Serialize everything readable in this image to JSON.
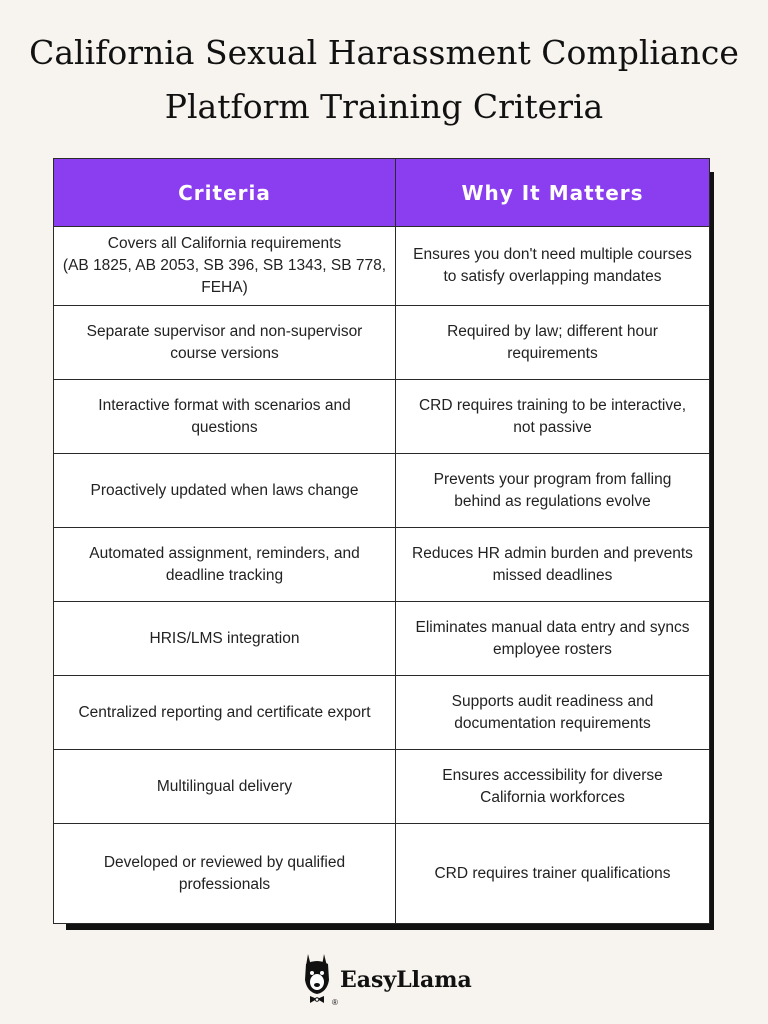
{
  "title": {
    "line1": "California Sexual Harassment Compliance",
    "line2": "Platform Training Criteria"
  },
  "table": {
    "headers": [
      "Criteria",
      "Why It Matters"
    ],
    "rows": [
      {
        "criteria": [
          "Covers all California requirements",
          "(AB 1825, AB 2053, SB 396, SB 1343, SB 778,",
          "FEHA)"
        ],
        "why": [
          "Ensures you don't need multiple courses",
          "to satisfy overlapping mandates"
        ]
      },
      {
        "criteria": [
          "Separate supervisor and non-supervisor",
          "course versions"
        ],
        "why": [
          "Required by law; different hour",
          "requirements"
        ]
      },
      {
        "criteria": [
          "Interactive format with scenarios and",
          "questions"
        ],
        "why": [
          "CRD requires training to be interactive,",
          "not passive"
        ]
      },
      {
        "criteria": [
          "Proactively updated when laws change"
        ],
        "why": [
          "Prevents your program from falling",
          "behind as regulations evolve"
        ]
      },
      {
        "criteria": [
          "Automated assignment, reminders, and",
          "deadline tracking"
        ],
        "why": [
          "Reduces HR admin burden and prevents",
          "missed deadlines"
        ]
      },
      {
        "criteria": [
          "HRIS/LMS integration"
        ],
        "why": [
          "Eliminates manual data entry and syncs",
          "employee rosters"
        ]
      },
      {
        "criteria": [
          "Centralized reporting and certificate export"
        ],
        "why": [
          "Supports audit readiness and",
          "documentation requirements"
        ]
      },
      {
        "criteria": [
          "Multilingual delivery"
        ],
        "why": [
          "Ensures accessibility for diverse",
          "California workforces"
        ]
      },
      {
        "criteria": [
          "Developed or reviewed by qualified",
          "professionals"
        ],
        "why": [
          "CRD requires trainer qualifications"
        ]
      }
    ]
  },
  "logo": {
    "text": "EasyLlama",
    "reg": "®",
    "icon": "llama-icon"
  }
}
